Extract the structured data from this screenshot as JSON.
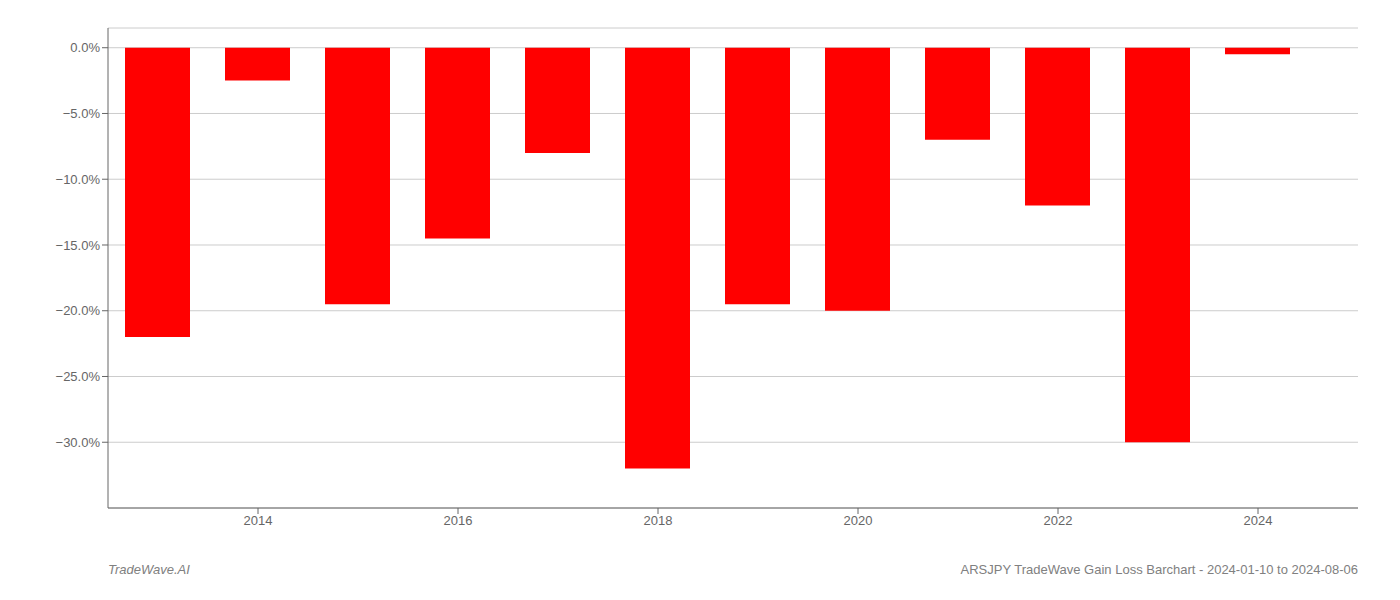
{
  "chart_data": {
    "type": "bar",
    "categories": [
      2013,
      2014,
      2015,
      2016,
      2017,
      2018,
      2019,
      2020,
      2021,
      2022,
      2023,
      2024
    ],
    "values": [
      -22.0,
      -2.5,
      -19.5,
      -14.5,
      -8.0,
      -32.0,
      -19.5,
      -20.0,
      -7.0,
      -12.0,
      -30.0,
      -0.5
    ],
    "color": "#ff0000",
    "xlim": [
      2012.5,
      2025.0
    ],
    "xticks": [
      2014,
      2016,
      2018,
      2020,
      2022,
      2024
    ],
    "ylim": [
      -35,
      1.5
    ],
    "yticks": [
      {
        "value": 0.0,
        "label": "0.0%"
      },
      {
        "value": -5.0,
        "label": "−5.0%"
      },
      {
        "value": -10.0,
        "label": "−10.0%"
      },
      {
        "value": -15.0,
        "label": "−15.0%"
      },
      {
        "value": -20.0,
        "label": "−20.0%"
      },
      {
        "value": -25.0,
        "label": "−25.0%"
      },
      {
        "value": -30.0,
        "label": "−30.0%"
      }
    ],
    "grid": true,
    "annotations": [
      "TradeWave.AI",
      "ARSJPY TradeWave Gain Loss Barchart - 2024-01-10 to 2024-08-06"
    ]
  }
}
